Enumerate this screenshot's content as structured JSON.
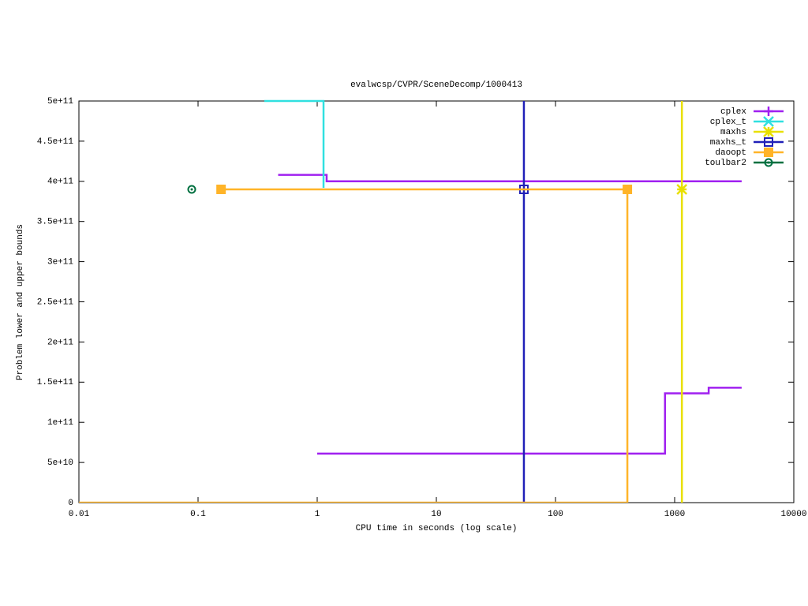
{
  "chart_data": {
    "type": "line",
    "title": "evalwcsp/CVPR/SceneDecomp/1000413",
    "x_label": "CPU time in seconds (log scale)",
    "y_label": "Problem lower and upper bounds",
    "xscale": "log",
    "xlim": [
      0.01,
      10000
    ],
    "xticks": [
      0.01,
      0.1,
      1,
      10,
      100,
      1000,
      10000
    ],
    "ylim": [
      0,
      500000000000
    ],
    "yticks": [
      0,
      {
        "value": 50000000000,
        "label": "5e+10"
      },
      {
        "value": 100000000000,
        "label": "1e+11"
      },
      {
        "value": 150000000000,
        "label": "1.5e+11"
      },
      {
        "value": 200000000000,
        "label": "2e+11"
      },
      {
        "value": 250000000000,
        "label": "2.5e+11"
      },
      {
        "value": 300000000000,
        "label": "3e+11"
      },
      {
        "value": 350000000000,
        "label": "3.5e+11"
      },
      {
        "value": 400000000000,
        "label": "4e+11"
      },
      {
        "value": 450000000000,
        "label": "4.5e+11"
      },
      {
        "value": 500000000000,
        "label": "5e+11"
      }
    ],
    "legend": "top-right",
    "series": [
      {
        "name": "cplex",
        "color": "#a020f0",
        "marker": "plus",
        "x": [
          0.47,
          1.2,
          1.2,
          3650,
          null,
          1.0,
          830,
          830,
          1930,
          1930,
          3650
        ],
        "values": [
          408000000000,
          408000000000,
          400000000000,
          400000000000,
          null,
          61000000000,
          61000000000,
          136000000000,
          136000000000,
          143000000000,
          143000000000
        ],
        "marker_x": [],
        "marker_values": []
      },
      {
        "name": "cplex_t",
        "color": "#30e0e0",
        "marker": "cross",
        "x": [
          0.36,
          1.13,
          1.13
        ],
        "values": [
          500000000000,
          500000000000,
          392000000000
        ],
        "marker_x": [],
        "marker_values": []
      },
      {
        "name": "maxhs",
        "color": "#e8e000",
        "marker": "star",
        "x": [
          1150,
          1150
        ],
        "values": [
          0,
          500000000000
        ],
        "marker_x": [
          1150
        ],
        "marker_values": [
          390000000000
        ]
      },
      {
        "name": "maxhs_t",
        "color": "#2020b8",
        "marker": "square",
        "x": [
          54.3,
          54.3
        ],
        "values": [
          0,
          500000000000
        ],
        "marker_x": [
          54.3
        ],
        "marker_values": [
          390000000000
        ]
      },
      {
        "name": "daoopt",
        "color": "#ffb428",
        "marker": "filled-square",
        "x": [
          0.156,
          401,
          401,
          null,
          0.01,
          401
        ],
        "values": [
          390000000000,
          390000000000,
          0,
          null,
          0,
          0
        ],
        "marker_x": [
          0.156,
          401
        ],
        "marker_values": [
          390000000000,
          390000000000
        ]
      },
      {
        "name": "toulbar2",
        "color": "#007040",
        "marker": "circle",
        "x": [],
        "values": [],
        "marker_x": [
          0.0885
        ],
        "marker_values": [
          390000000000
        ]
      }
    ]
  }
}
